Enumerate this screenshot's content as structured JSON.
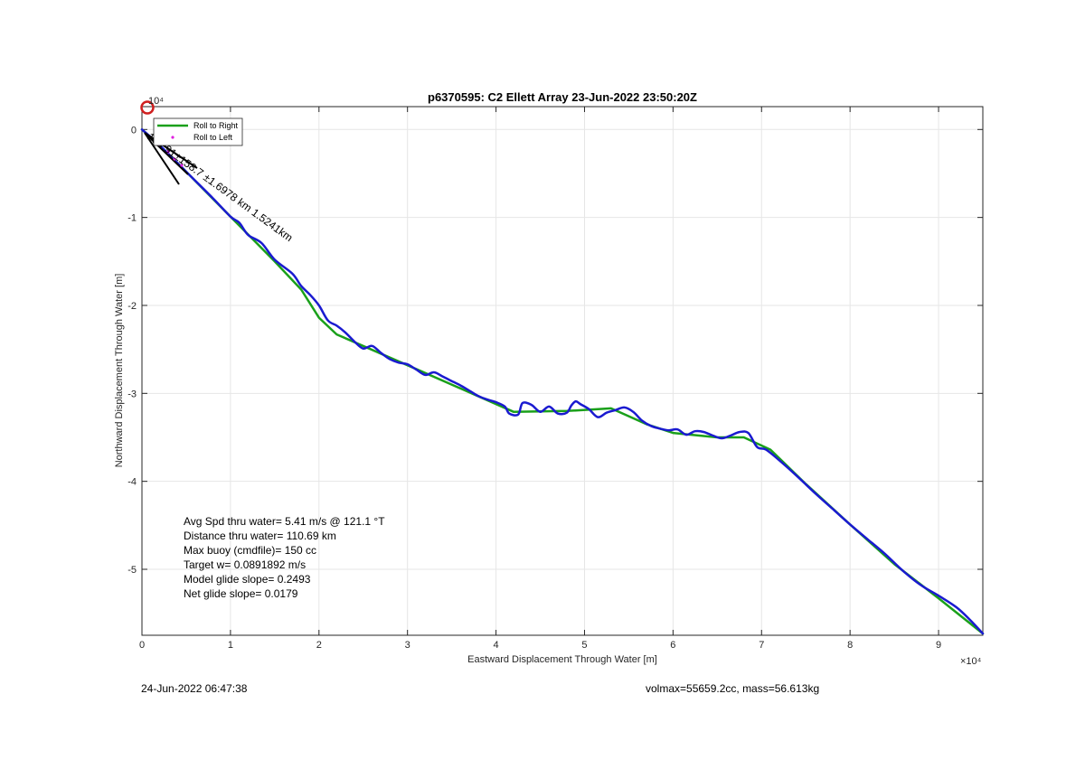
{
  "chart_data": {
    "type": "line",
    "title": "p6370595: C2 Ellett Array 23-Jun-2022 23:50:20Z",
    "xlabel": "Eastward Displacement Through Water [m]",
    "ylabel": "Northward Displacement Through Water [m]",
    "x_exponent": "×10⁴",
    "y_exponent": "10⁴",
    "xlim": [
      0,
      95000
    ],
    "ylim": [
      -57500,
      2600
    ],
    "xticks": [
      0,
      10000,
      20000,
      30000,
      40000,
      50000,
      60000,
      70000,
      80000,
      90000
    ],
    "xtick_labels": [
      "0",
      "1",
      "2",
      "3",
      "4",
      "5",
      "6",
      "7",
      "8",
      "9"
    ],
    "yticks": [
      0,
      -10000,
      -20000,
      -30000,
      -40000,
      -50000
    ],
    "ytick_labels": [
      "0",
      "-1",
      "-2",
      "-3",
      "-4",
      "-5"
    ],
    "grid": true,
    "legend": {
      "placement": "top-left",
      "entries": [
        {
          "label": "Roll to Right",
          "color": "#1aa01a",
          "style": "line"
        },
        {
          "label": "Roll to Left",
          "color": "#e020e0",
          "style": "dot"
        }
      ]
    },
    "series": [
      {
        "name": "Roll to Right",
        "color": "#1aa01a",
        "x": [
          0,
          2000,
          5000,
          10000,
          15000,
          18000,
          20000,
          22000,
          30000,
          35000,
          42000,
          48000,
          53000,
          57000,
          60000,
          65000,
          68000,
          71000,
          75000,
          80000,
          85000,
          90000,
          95000
        ],
        "y": [
          0,
          -1800,
          -4800,
          -9900,
          -15000,
          -18200,
          -21400,
          -23300,
          -26800,
          -29000,
          -32100,
          -32000,
          -31700,
          -33500,
          -34500,
          -35000,
          -35000,
          -36400,
          -40300,
          -44900,
          -49400,
          -53300,
          -57300
        ]
      },
      {
        "name": "",
        "color": "#1a1ad0",
        "x": [
          0,
          2000,
          5000,
          8000,
          10000,
          11000,
          12000,
          13500,
          15000,
          17000,
          18000,
          19000,
          20000,
          21000,
          22000,
          23000,
          24000,
          25000,
          26000,
          27000,
          28000,
          29000,
          30000,
          31000,
          32000,
          33000,
          34000,
          35000,
          36000,
          37000,
          38000,
          39000,
          40000,
          41000,
          41500,
          42500,
          43000,
          44000,
          45000,
          46000,
          47000,
          48000,
          48500,
          49000,
          49500,
          50500,
          51500,
          52500,
          53500,
          54500,
          55500,
          56500,
          57500,
          58500,
          59500,
          60500,
          61500,
          62500,
          63500,
          64500,
          65500,
          66500,
          67500,
          68500,
          69500,
          70500,
          72000,
          74000,
          76000,
          78000,
          80000,
          82000,
          84000,
          86000,
          88000,
          90000,
          92000,
          93500,
          95000
        ],
        "y": [
          0,
          -1800,
          -4800,
          -7800,
          -9900,
          -10600,
          -12000,
          -12900,
          -14800,
          -16400,
          -17800,
          -18800,
          -20000,
          -21700,
          -22300,
          -23100,
          -24100,
          -24900,
          -24600,
          -25400,
          -26100,
          -26500,
          -26700,
          -27300,
          -27900,
          -27600,
          -28100,
          -28600,
          -29100,
          -29700,
          -30300,
          -30700,
          -31000,
          -31500,
          -32300,
          -32400,
          -31100,
          -31300,
          -32100,
          -31500,
          -32300,
          -32200,
          -31400,
          -30900,
          -31200,
          -31800,
          -32700,
          -32200,
          -31900,
          -31600,
          -32100,
          -33100,
          -33700,
          -34000,
          -34200,
          -34100,
          -34700,
          -34300,
          -34400,
          -34800,
          -35100,
          -34800,
          -34400,
          -34500,
          -36100,
          -36400,
          -37600,
          -39400,
          -41300,
          -43100,
          -44900,
          -46600,
          -48300,
          -50200,
          -51800,
          -53000,
          -54300,
          -55700,
          -57300
        ]
      }
    ],
    "markers": {
      "start_circle_color": "#d02020",
      "course_label": "184.91±158.7 ±1.6978 km 1.5241km"
    },
    "annotations": [
      "Avg Spd thru water=  5.41 m/s @ 121.1 °T",
      "Distance thru water= 110.69 km",
      "Max buoy (cmdfile)= 150 cc",
      "Target w= 0.0891892 m/s",
      "Model glide slope= 0.2493",
      "Net glide slope= 0.0179"
    ]
  },
  "footer": {
    "timestamp": "24-Jun-2022 06:47:38",
    "vehicle_info": "volmax=55659.2cc, mass=56.613kg"
  }
}
